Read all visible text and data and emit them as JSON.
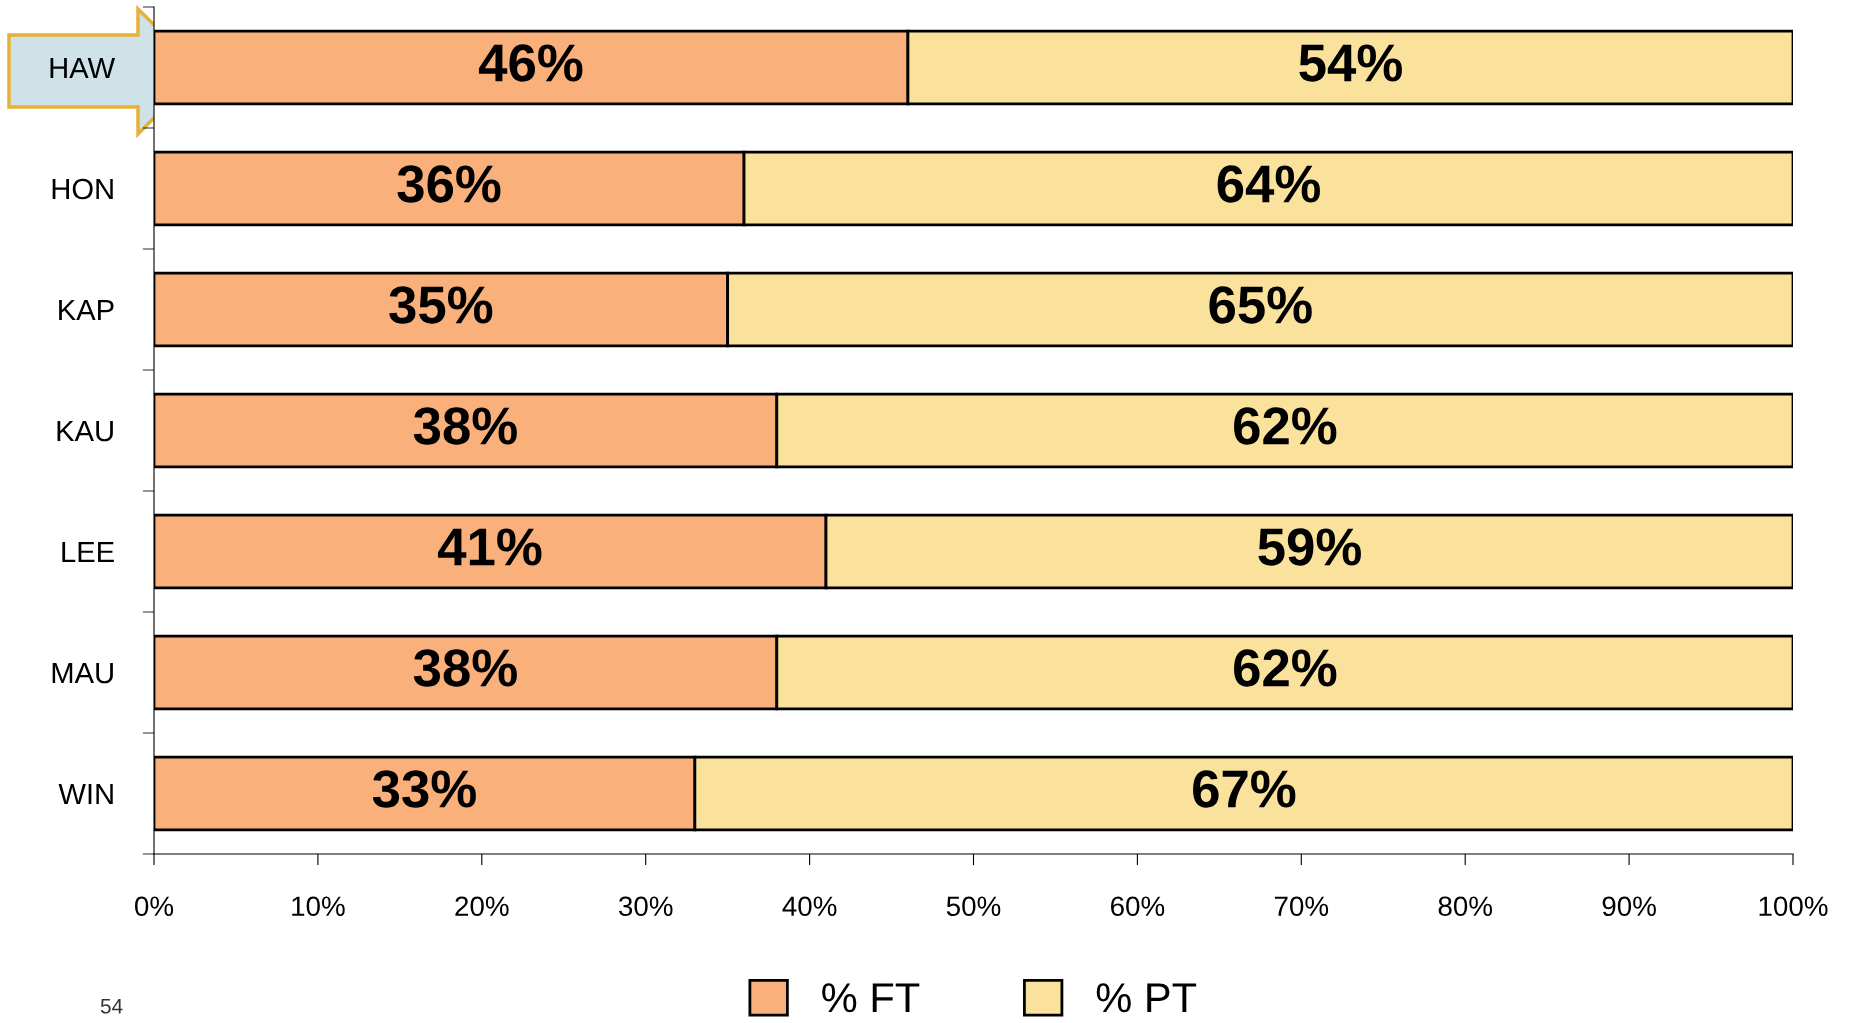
{
  "chart_data": {
    "type": "bar",
    "orientation": "horizontal",
    "stacked": true,
    "categories": [
      "HAW",
      "HON",
      "KAP",
      "KAU",
      "LEE",
      "MAU",
      "WIN"
    ],
    "series": [
      {
        "name": "% FT",
        "color": "#f9b07a",
        "values": [
          46,
          36,
          35,
          38,
          41,
          38,
          33
        ],
        "value_labels": [
          "46%",
          "36%",
          "35%",
          "38%",
          "41%",
          "38%",
          "33%"
        ]
      },
      {
        "name": "% PT",
        "color": "#fbe29c",
        "values": [
          54,
          64,
          65,
          62,
          59,
          62,
          67
        ],
        "value_labels": [
          "54%",
          "64%",
          "65%",
          "62%",
          "59%",
          "62%",
          "67%"
        ]
      }
    ],
    "xlim": [
      0,
      100
    ],
    "xticks": [
      {
        "value": 0,
        "label": "0%"
      },
      {
        "value": 10,
        "label": "10%"
      },
      {
        "value": 20,
        "label": "20%"
      },
      {
        "value": 30,
        "label": "30%"
      },
      {
        "value": 40,
        "label": "40%"
      },
      {
        "value": 50,
        "label": "50%"
      },
      {
        "value": 60,
        "label": "60%"
      },
      {
        "value": 70,
        "label": "70%"
      },
      {
        "value": 80,
        "label": "80%"
      },
      {
        "value": 90,
        "label": "90%"
      },
      {
        "value": 100,
        "label": "100%"
      }
    ],
    "grid": false,
    "legend": "bottom",
    "annotations": [
      "54"
    ]
  }
}
